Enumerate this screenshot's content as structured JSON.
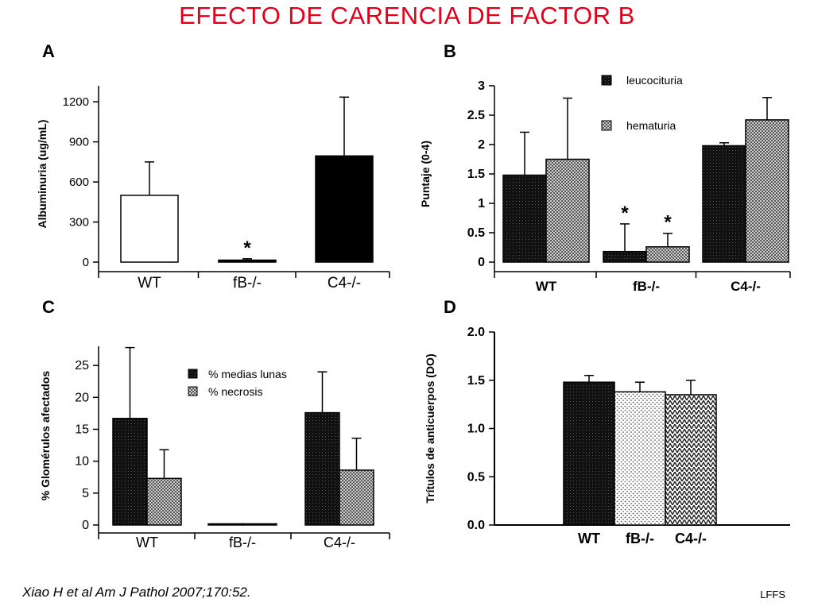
{
  "title": "EFECTO DE CARENCIA DE FACTOR B",
  "citation": "Xiao H et al Am J Pathol 2007;170:52.",
  "footer": "LFFS",
  "colors": {
    "title": "#e3001b",
    "black": "#000000",
    "white": "#ffffff"
  },
  "chart_data": [
    {
      "panel": "A",
      "type": "bar",
      "ylabel": "Albuminuria (ug/mL)",
      "xlabel": "",
      "categories": [
        "WT",
        "fB-/-",
        "C4-/-"
      ],
      "ticks": [
        0,
        300,
        600,
        900,
        1200
      ],
      "ylim": [
        0,
        1320
      ],
      "series": [
        {
          "values": [
            500,
            15,
            795
          ],
          "errors": [
            250,
            10,
            440
          ],
          "fill": "white"
        }
      ],
      "fills_by_category": [
        "white",
        "black",
        "black"
      ],
      "annotations": [
        {
          "category": "fB-/-",
          "text": "*"
        }
      ],
      "grid": false
    },
    {
      "panel": "B",
      "type": "bar",
      "ylabel": "Puntaje (0-4)",
      "xlabel": "",
      "categories": [
        "WT",
        "fB-/-",
        "C4-/-"
      ],
      "ticks": [
        "0",
        "0.5",
        "1",
        "1.5",
        "2",
        "2.5",
        "3"
      ],
      "ylim": [
        0,
        3
      ],
      "series": [
        {
          "name": "leucocituria",
          "values": [
            1.48,
            0.18,
            1.98
          ],
          "errors": [
            0.73,
            0.47,
            0.05
          ],
          "pattern": "dark-dots"
        },
        {
          "name": "hematuria",
          "values": [
            1.75,
            0.26,
            2.42
          ],
          "errors": [
            1.04,
            0.23,
            0.38
          ],
          "pattern": "checker"
        }
      ],
      "annotations": [
        {
          "category": "fB-/-",
          "series": 0,
          "text": "*"
        },
        {
          "category": "fB-/-",
          "series": 1,
          "text": "*"
        }
      ],
      "legend_position": "top-right",
      "grid": false
    },
    {
      "panel": "C",
      "type": "bar",
      "ylabel": "% Glomérulos afectados",
      "xlabel": "",
      "categories": [
        "WT",
        "fB-/-",
        "C4-/-"
      ],
      "ticks": [
        0,
        5,
        10,
        15,
        20,
        25
      ],
      "ylim": [
        0,
        28
      ],
      "series": [
        {
          "name": "% medias lunas",
          "values": [
            16.7,
            0.15,
            17.6
          ],
          "errors": [
            11.1,
            0,
            6.4
          ],
          "pattern": "dark-dots"
        },
        {
          "name": "% necrosis",
          "values": [
            7.3,
            0,
            8.6
          ],
          "errors": [
            4.5,
            0,
            5.0
          ],
          "pattern": "checker"
        }
      ],
      "legend_position": "top-center",
      "grid": false
    },
    {
      "panel": "D",
      "type": "bar",
      "ylabel": "Trítulos de anticuerpos (DO)",
      "xlabel": "",
      "categories": [
        "WT",
        "fB-/-",
        "C4-/-"
      ],
      "ticks": [
        "0.0",
        "0.5",
        "1.0",
        "1.5",
        "2.0"
      ],
      "ylim": [
        0,
        2.0
      ],
      "series": [
        {
          "values": [
            1.48,
            1.38,
            1.35
          ],
          "errors": [
            0.07,
            0.1,
            0.15
          ]
        }
      ],
      "fills_by_category": [
        "dark-dots",
        "light-dots",
        "hatch"
      ],
      "grid": false
    }
  ]
}
